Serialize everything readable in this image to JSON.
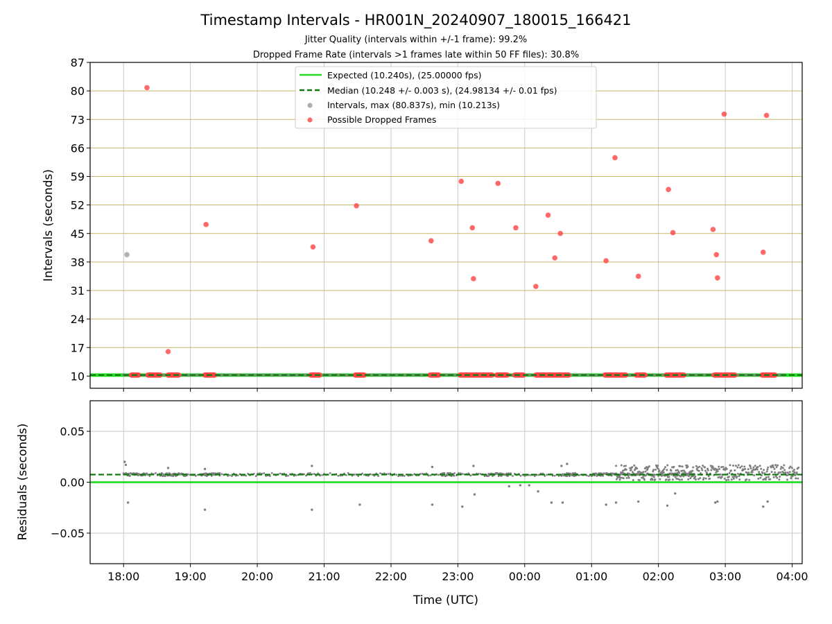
{
  "chart_data": {
    "type": "scatter",
    "title": "Timestamp Intervals - HR001N_20240907_180015_166421",
    "subtitle_lines": [
      "Jitter Quality (intervals within +/-1 frame): 99.2%",
      "Dropped Frame Rate (intervals >1 frames late within 50 FF files): 30.8%"
    ],
    "xlabel": "Time (UTC)",
    "x_ticks": [
      "18:00",
      "19:00",
      "20:00",
      "21:00",
      "22:00",
      "23:00",
      "00:00",
      "01:00",
      "02:00",
      "03:00",
      "04:00"
    ],
    "x_range_hours_after_1800": [
      -0.5,
      10.15
    ],
    "top_panel": {
      "ylabel": "Intervals (seconds)",
      "ylim": [
        7,
        87
      ],
      "y_ticks": [
        10,
        17,
        24,
        31,
        38,
        45,
        52,
        59,
        66,
        73,
        80,
        87
      ],
      "grid": true,
      "legend": {
        "placement": "upper center",
        "entries": [
          {
            "label": "Expected (10.240s), (25.00000 fps)",
            "style": "solid-line",
            "color": "#22dd22"
          },
          {
            "label": "Median (10.248 +/- 0.003 s), (24.98134 +/- 0.01 fps)",
            "style": "dashed-line",
            "color": "#117711"
          },
          {
            "label": "Intervals, max (80.837s), min (10.213s)",
            "style": "marker",
            "color": "#999999"
          },
          {
            "label": "Possible Dropped Frames",
            "style": "marker",
            "color": "#ff4444"
          }
        ]
      },
      "expected_interval": 10.24,
      "median_interval": 10.248,
      "baseline_points_hours": [
        0.05,
        0.15,
        0.22,
        0.3
      ],
      "intervals_points": [
        {
          "t": "18:03",
          "y": 39.8
        }
      ],
      "dropped_frames": [
        {
          "t": "18:21",
          "y": 80.8
        },
        {
          "t": "18:40",
          "y": 16.0
        },
        {
          "t": "19:14",
          "y": 47.2
        },
        {
          "t": "20:50",
          "y": 41.7
        },
        {
          "t": "21:29",
          "y": 51.8
        },
        {
          "t": "22:36",
          "y": 43.2
        },
        {
          "t": "23:03",
          "y": 57.8
        },
        {
          "t": "23:13",
          "y": 46.4
        },
        {
          "t": "23:14",
          "y": 33.9
        },
        {
          "t": "23:36",
          "y": 57.3
        },
        {
          "t": "23:52",
          "y": 46.4
        },
        {
          "t": "00:10",
          "y": 32.0
        },
        {
          "t": "00:21",
          "y": 49.5
        },
        {
          "t": "00:27",
          "y": 39.0
        },
        {
          "t": "00:32",
          "y": 45.0
        },
        {
          "t": "01:13",
          "y": 38.3
        },
        {
          "t": "01:21",
          "y": 63.6
        },
        {
          "t": "01:42",
          "y": 34.5
        },
        {
          "t": "02:09",
          "y": 55.8
        },
        {
          "t": "02:13",
          "y": 45.2
        },
        {
          "t": "02:49",
          "y": 46.0
        },
        {
          "t": "02:52",
          "y": 39.8
        },
        {
          "t": "02:53",
          "y": 34.1
        },
        {
          "t": "02:59",
          "y": 74.3
        },
        {
          "t": "03:34",
          "y": 40.4
        },
        {
          "t": "03:37",
          "y": 74.0
        }
      ],
      "dropped_frame_clusters_at_baseline": [
        {
          "start": "18:07",
          "end": "18:14"
        },
        {
          "start": "18:22",
          "end": "18:33"
        },
        {
          "start": "18:40",
          "end": "18:50"
        },
        {
          "start": "19:13",
          "end": "19:22"
        },
        {
          "start": "20:48",
          "end": "20:56"
        },
        {
          "start": "21:28",
          "end": "21:36"
        },
        {
          "start": "22:35",
          "end": "22:43"
        },
        {
          "start": "23:02",
          "end": "23:31"
        },
        {
          "start": "23:35",
          "end": "23:45"
        },
        {
          "start": "23:51",
          "end": "23:59"
        },
        {
          "start": "00:10",
          "end": "00:40"
        },
        {
          "start": "01:12",
          "end": "01:31"
        },
        {
          "start": "01:40",
          "end": "01:48"
        },
        {
          "start": "02:07",
          "end": "02:23"
        },
        {
          "start": "02:50",
          "end": "03:09"
        },
        {
          "start": "03:33",
          "end": "03:45"
        }
      ]
    },
    "bottom_panel": {
      "ylabel": "Residuals (seconds)",
      "ylim": [
        -0.08,
        0.08
      ],
      "y_ticks": [
        0.05,
        0.0,
        -0.05
      ],
      "y_tick_labels": [
        "0.05",
        "0.00",
        "−0.05"
      ],
      "grid": true,
      "expected_residual": 0.0,
      "median_residual": 0.0075,
      "main_band": {
        "center": 0.0075,
        "spread": 0.0015
      },
      "dense_band_after": "01:22",
      "dense_band_range": [
        0.002,
        0.017
      ],
      "high_outliers": [
        {
          "t": "18:01",
          "y": 0.02
        },
        {
          "t": "18:02",
          "y": 0.017
        },
        {
          "t": "18:40",
          "y": 0.014
        },
        {
          "t": "19:13",
          "y": 0.013
        },
        {
          "t": "20:49",
          "y": 0.016
        },
        {
          "t": "22:37",
          "y": 0.015
        },
        {
          "t": "23:14",
          "y": 0.016
        },
        {
          "t": "00:38",
          "y": 0.018
        },
        {
          "t": "00:33",
          "y": 0.016
        }
      ],
      "low_outliers": [
        {
          "t": "18:04",
          "y": -0.02
        },
        {
          "t": "19:13",
          "y": -0.027
        },
        {
          "t": "20:49",
          "y": -0.027
        },
        {
          "t": "21:32",
          "y": -0.022
        },
        {
          "t": "22:37",
          "y": -0.022
        },
        {
          "t": "23:04",
          "y": -0.024
        },
        {
          "t": "23:15",
          "y": -0.012
        },
        {
          "t": "23:46",
          "y": -0.004
        },
        {
          "t": "23:56",
          "y": -0.003
        },
        {
          "t": "00:04",
          "y": -0.003
        },
        {
          "t": "00:12",
          "y": -0.009
        },
        {
          "t": "00:24",
          "y": -0.02
        },
        {
          "t": "00:34",
          "y": -0.02
        },
        {
          "t": "01:13",
          "y": -0.022
        },
        {
          "t": "01:22",
          "y": -0.02
        },
        {
          "t": "01:42",
          "y": -0.019
        },
        {
          "t": "02:08",
          "y": -0.023
        },
        {
          "t": "02:15",
          "y": -0.011
        },
        {
          "t": "02:51",
          "y": -0.02
        },
        {
          "t": "02:53",
          "y": -0.019
        },
        {
          "t": "03:34",
          "y": -0.024
        },
        {
          "t": "03:38",
          "y": -0.019
        }
      ]
    },
    "colors": {
      "expected": "#22dd22",
      "median": "#117711",
      "intervals": "#808080",
      "dropped": "#ff4444",
      "hgrid_top": "#c9b66a",
      "grid": "#c8c8c8"
    }
  }
}
